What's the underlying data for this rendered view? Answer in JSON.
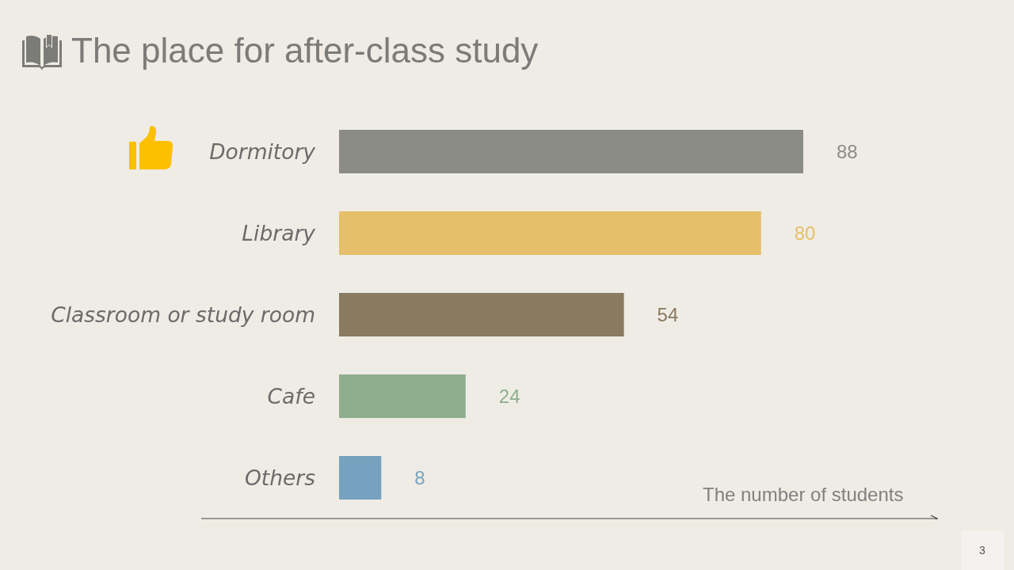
{
  "chart_data": {
    "type": "bar",
    "orientation": "horizontal",
    "title": "The place for after-class study",
    "xlabel": "The number of students",
    "categories": [
      "Dormitory",
      "Library",
      "Classroom or study room",
      "Cafe",
      "Others"
    ],
    "values": [
      88,
      80,
      54,
      24,
      8
    ],
    "colors": [
      "#8c8c86",
      "#e5bf69",
      "#8a7a5f",
      "#8fae8d",
      "#77a2bf"
    ],
    "data_labels": true,
    "tick_labels": "y",
    "annotations": [
      "3"
    ]
  }
}
